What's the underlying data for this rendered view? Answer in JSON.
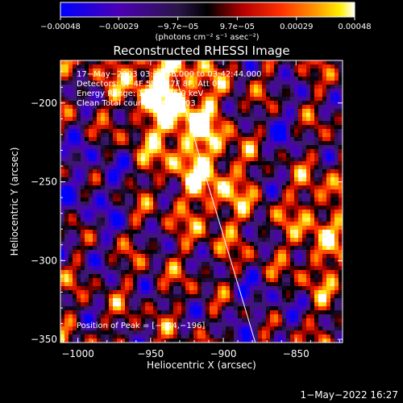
{
  "chart_data": {
    "type": "heatmap",
    "title": "Reconstructed RHESSI Image",
    "xlabel": "Heliocentric X (arcsec)",
    "ylabel": "Heliocentric Y (arcsec)",
    "xlim": [
      -1012,
      -818
    ],
    "ylim": [
      -352,
      -173
    ],
    "x_ticks": [
      -1000,
      -950,
      -900,
      -850
    ],
    "x_tick_labels": [
      "−1000",
      "−950",
      "−900",
      "−850"
    ],
    "y_ticks": [
      -200,
      -250,
      -300,
      -350
    ],
    "y_tick_labels": [
      "−200",
      "−250",
      "−300",
      "−350"
    ],
    "colorbar": {
      "min": -0.00048,
      "max": 0.00048,
      "ticks": [
        -0.00048,
        -0.00029,
        -9.7e-05,
        9.7e-05,
        0.00029,
        0.00048
      ],
      "tick_labels": [
        "−0.00048",
        "−0.00029",
        "−9.7e−05",
        "9.7e−05",
        "0.00029",
        "0.00048"
      ],
      "units": "(photons cm⁻² s⁻¹ asec⁻²)",
      "colors": [
        "#0000ff",
        "#5a00aa",
        "#3a2060",
        "#000000",
        "#ff0000",
        "#ff9900",
        "#ffff00",
        "#ffffff"
      ]
    },
    "info_lines": [
      "17−May−2003 03:39:36.000 to 03:42:44.000",
      "Detectors: 3F 4F 5F 6F 7F 8F, Att 0",
      "Energy Range: 12.0 − 25.0 keV",
      "Clean     Total counts: 1.91E+03"
    ],
    "peak_label": "Position of Peak = [−944,−196]",
    "peak": [
      -944,
      -196
    ],
    "limb_line": [
      [
        -936,
        -173
      ],
      [
        -878,
        -352
      ]
    ],
    "grid": false
  },
  "footer": {
    "timestamp": "1−May−2022 16:27"
  }
}
